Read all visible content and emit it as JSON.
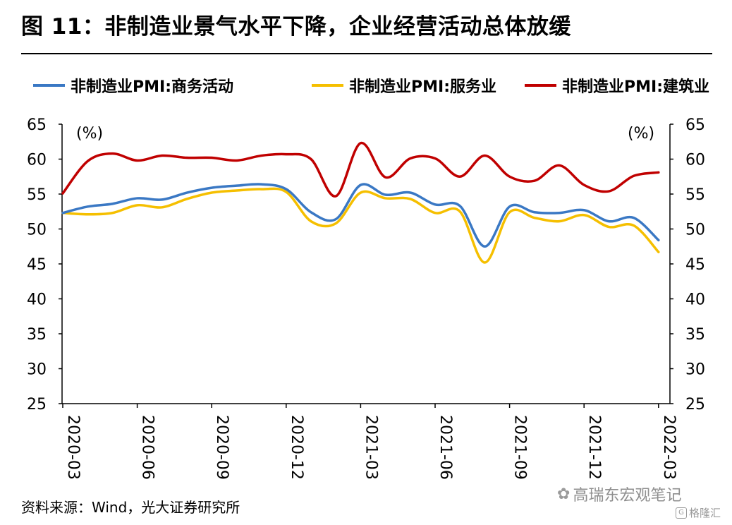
{
  "header": {
    "title": "图 11：非制造业景气水平下降，企业经营活动总体放缓"
  },
  "footer": {
    "source": "资料来源：Wind，光大证券研究所",
    "watermark": "高瑞东宏观笔记",
    "watermark2": "格隆汇"
  },
  "chart_data": {
    "type": "line",
    "left_unit": "(%)",
    "right_unit": "(%)",
    "ylim": [
      25,
      65
    ],
    "y_ticks": [
      25,
      30,
      35,
      40,
      45,
      50,
      55,
      60,
      65
    ],
    "x": [
      "2020-03",
      "2020-04",
      "2020-05",
      "2020-06",
      "2020-07",
      "2020-08",
      "2020-09",
      "2020-10",
      "2020-11",
      "2020-12",
      "2021-01",
      "2021-02",
      "2021-03",
      "2021-04",
      "2021-05",
      "2021-06",
      "2021-07",
      "2021-08",
      "2021-09",
      "2021-10",
      "2021-11",
      "2021-12",
      "2022-01",
      "2022-02",
      "2022-03"
    ],
    "x_tick_labels": [
      "2020-03",
      "2020-06",
      "2020-09",
      "2020-12",
      "2021-03",
      "2021-06",
      "2021-09",
      "2021-12",
      "2022-03"
    ],
    "legend_position": "top",
    "grid": false,
    "series": [
      {
        "name": "非制造业PMI:商务活动",
        "color": "#3a78c4",
        "values": [
          52.3,
          53.2,
          53.6,
          54.4,
          54.2,
          55.2,
          55.9,
          56.2,
          56.4,
          55.7,
          52.4,
          51.4,
          56.3,
          54.9,
          55.2,
          53.5,
          53.3,
          47.5,
          53.2,
          52.4,
          52.3,
          52.7,
          51.1,
          51.6,
          48.4
        ]
      },
      {
        "name": "非制造业PMI:服务业",
        "color": "#f5bf00",
        "values": [
          52.3,
          52.1,
          52.3,
          53.4,
          53.1,
          54.3,
          55.2,
          55.5,
          55.7,
          55.3,
          51.1,
          50.8,
          55.2,
          54.4,
          54.3,
          52.3,
          52.5,
          45.2,
          52.4,
          51.6,
          51.1,
          52.0,
          50.3,
          50.5,
          46.7
        ]
      },
      {
        "name": "非制造业PMI:建筑业",
        "color": "#c00000",
        "values": [
          55.1,
          59.7,
          60.8,
          59.8,
          60.5,
          60.2,
          60.2,
          59.8,
          60.5,
          60.7,
          60.0,
          54.7,
          62.3,
          57.4,
          60.1,
          60.1,
          57.5,
          60.5,
          57.5,
          56.9,
          59.1,
          56.3,
          55.4,
          57.6,
          58.1
        ]
      }
    ]
  }
}
